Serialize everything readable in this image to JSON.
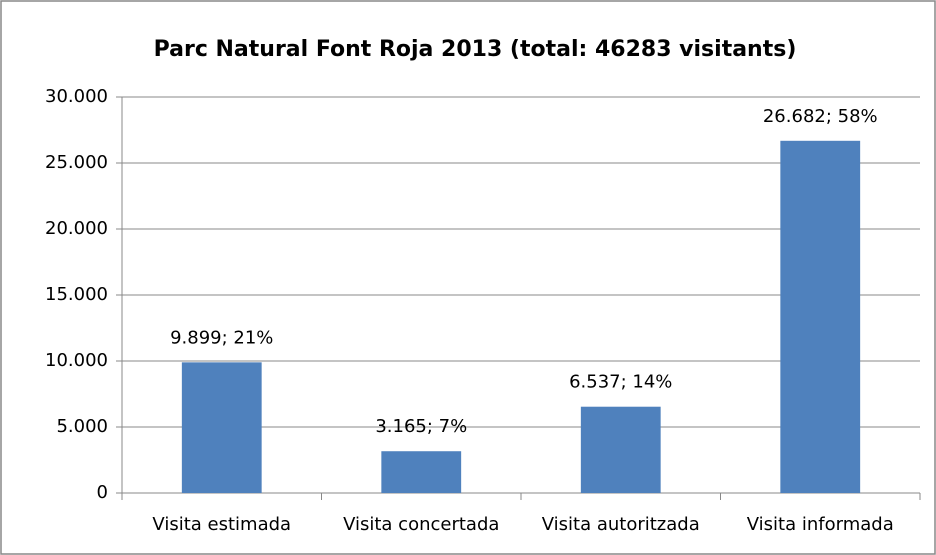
{
  "chart_data": {
    "type": "bar",
    "title": "Parc Natural Font Roja 2013 (total: 46283 visitants)",
    "categories": [
      "Visita estimada",
      "Visita concertada",
      "Visita autoritzada",
      "Visita informada"
    ],
    "values": [
      9899,
      3165,
      6537,
      26682
    ],
    "value_labels": [
      "9.899; 21%",
      "3.165; 7%",
      "6.537; 14%",
      "26.682; 58%"
    ],
    "color": "#4f81bd",
    "ylim": [
      0,
      30000
    ],
    "yticks": [
      0,
      {
        "value": 5000,
        "label": "5.000"
      },
      {
        "value": 10000,
        "label": "10.000"
      },
      {
        "value": 15000,
        "label": "15.000"
      },
      {
        "value": 20000,
        "label": "20.000"
      },
      {
        "value": 25000,
        "label": "25.000"
      },
      {
        "value": 30000,
        "label": "30.000"
      }
    ],
    "grid": true
  }
}
